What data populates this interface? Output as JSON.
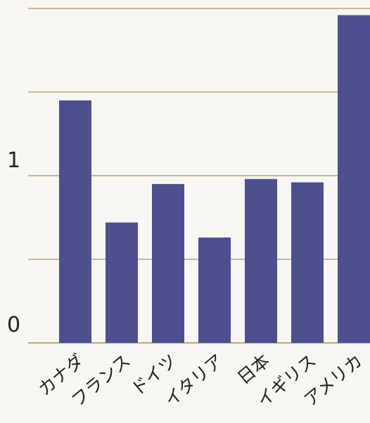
{
  "chart_data": {
    "type": "bar",
    "categories": [
      "カナダ",
      "フランス",
      "ドイツ",
      "イタリア",
      "日本",
      "イギリス",
      "アメリカ"
    ],
    "values": [
      1.45,
      0.72,
      0.95,
      0.63,
      0.98,
      0.96,
      1.96
    ],
    "title": "",
    "xlabel": "",
    "ylabel": "",
    "ylim": [
      0,
      2
    ],
    "yticks": [
      0,
      0.5,
      1,
      1.5,
      2
    ],
    "ytick_labels": [
      {
        "value": 0,
        "label": "0"
      },
      {
        "value": 1,
        "label": "1"
      }
    ],
    "grid": true,
    "bar_color": "#4d4f8e",
    "grid_color": "#c9b98e"
  }
}
